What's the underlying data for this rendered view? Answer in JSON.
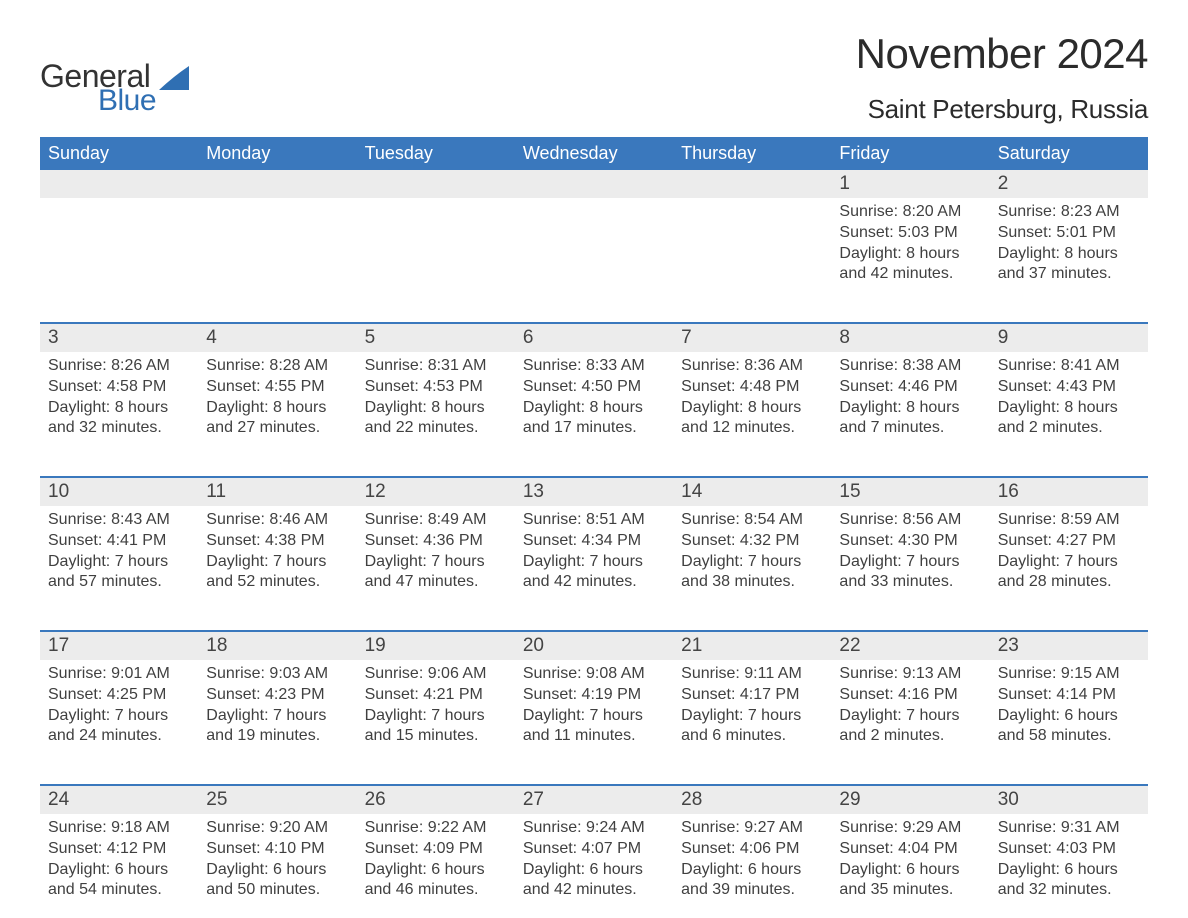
{
  "logo": {
    "general": "General",
    "blue": "Blue",
    "shape_color": "#2f6fb3"
  },
  "title": {
    "month": "November 2024",
    "location": "Saint Petersburg, Russia"
  },
  "colors": {
    "header_bg": "#3a78bd",
    "header_text": "#ffffff",
    "daynum_bg": "#ececec",
    "divider": "#3a78bd",
    "text": "#404040"
  },
  "day_headers": [
    "Sunday",
    "Monday",
    "Tuesday",
    "Wednesday",
    "Thursday",
    "Friday",
    "Saturday"
  ],
  "weeks": [
    {
      "days": [
        {
          "num": "",
          "sunrise": "",
          "sunset": "",
          "daylight1": "",
          "daylight2": ""
        },
        {
          "num": "",
          "sunrise": "",
          "sunset": "",
          "daylight1": "",
          "daylight2": ""
        },
        {
          "num": "",
          "sunrise": "",
          "sunset": "",
          "daylight1": "",
          "daylight2": ""
        },
        {
          "num": "",
          "sunrise": "",
          "sunset": "",
          "daylight1": "",
          "daylight2": ""
        },
        {
          "num": "",
          "sunrise": "",
          "sunset": "",
          "daylight1": "",
          "daylight2": ""
        },
        {
          "num": "1",
          "sunrise": "Sunrise: 8:20 AM",
          "sunset": "Sunset: 5:03 PM",
          "daylight1": "Daylight: 8 hours",
          "daylight2": "and 42 minutes."
        },
        {
          "num": "2",
          "sunrise": "Sunrise: 8:23 AM",
          "sunset": "Sunset: 5:01 PM",
          "daylight1": "Daylight: 8 hours",
          "daylight2": "and 37 minutes."
        }
      ]
    },
    {
      "days": [
        {
          "num": "3",
          "sunrise": "Sunrise: 8:26 AM",
          "sunset": "Sunset: 4:58 PM",
          "daylight1": "Daylight: 8 hours",
          "daylight2": "and 32 minutes."
        },
        {
          "num": "4",
          "sunrise": "Sunrise: 8:28 AM",
          "sunset": "Sunset: 4:55 PM",
          "daylight1": "Daylight: 8 hours",
          "daylight2": "and 27 minutes."
        },
        {
          "num": "5",
          "sunrise": "Sunrise: 8:31 AM",
          "sunset": "Sunset: 4:53 PM",
          "daylight1": "Daylight: 8 hours",
          "daylight2": "and 22 minutes."
        },
        {
          "num": "6",
          "sunrise": "Sunrise: 8:33 AM",
          "sunset": "Sunset: 4:50 PM",
          "daylight1": "Daylight: 8 hours",
          "daylight2": "and 17 minutes."
        },
        {
          "num": "7",
          "sunrise": "Sunrise: 8:36 AM",
          "sunset": "Sunset: 4:48 PM",
          "daylight1": "Daylight: 8 hours",
          "daylight2": "and 12 minutes."
        },
        {
          "num": "8",
          "sunrise": "Sunrise: 8:38 AM",
          "sunset": "Sunset: 4:46 PM",
          "daylight1": "Daylight: 8 hours",
          "daylight2": "and 7 minutes."
        },
        {
          "num": "9",
          "sunrise": "Sunrise: 8:41 AM",
          "sunset": "Sunset: 4:43 PM",
          "daylight1": "Daylight: 8 hours",
          "daylight2": "and 2 minutes."
        }
      ]
    },
    {
      "days": [
        {
          "num": "10",
          "sunrise": "Sunrise: 8:43 AM",
          "sunset": "Sunset: 4:41 PM",
          "daylight1": "Daylight: 7 hours",
          "daylight2": "and 57 minutes."
        },
        {
          "num": "11",
          "sunrise": "Sunrise: 8:46 AM",
          "sunset": "Sunset: 4:38 PM",
          "daylight1": "Daylight: 7 hours",
          "daylight2": "and 52 minutes."
        },
        {
          "num": "12",
          "sunrise": "Sunrise: 8:49 AM",
          "sunset": "Sunset: 4:36 PM",
          "daylight1": "Daylight: 7 hours",
          "daylight2": "and 47 minutes."
        },
        {
          "num": "13",
          "sunrise": "Sunrise: 8:51 AM",
          "sunset": "Sunset: 4:34 PM",
          "daylight1": "Daylight: 7 hours",
          "daylight2": "and 42 minutes."
        },
        {
          "num": "14",
          "sunrise": "Sunrise: 8:54 AM",
          "sunset": "Sunset: 4:32 PM",
          "daylight1": "Daylight: 7 hours",
          "daylight2": "and 38 minutes."
        },
        {
          "num": "15",
          "sunrise": "Sunrise: 8:56 AM",
          "sunset": "Sunset: 4:30 PM",
          "daylight1": "Daylight: 7 hours",
          "daylight2": "and 33 minutes."
        },
        {
          "num": "16",
          "sunrise": "Sunrise: 8:59 AM",
          "sunset": "Sunset: 4:27 PM",
          "daylight1": "Daylight: 7 hours",
          "daylight2": "and 28 minutes."
        }
      ]
    },
    {
      "days": [
        {
          "num": "17",
          "sunrise": "Sunrise: 9:01 AM",
          "sunset": "Sunset: 4:25 PM",
          "daylight1": "Daylight: 7 hours",
          "daylight2": "and 24 minutes."
        },
        {
          "num": "18",
          "sunrise": "Sunrise: 9:03 AM",
          "sunset": "Sunset: 4:23 PM",
          "daylight1": "Daylight: 7 hours",
          "daylight2": "and 19 minutes."
        },
        {
          "num": "19",
          "sunrise": "Sunrise: 9:06 AM",
          "sunset": "Sunset: 4:21 PM",
          "daylight1": "Daylight: 7 hours",
          "daylight2": "and 15 minutes."
        },
        {
          "num": "20",
          "sunrise": "Sunrise: 9:08 AM",
          "sunset": "Sunset: 4:19 PM",
          "daylight1": "Daylight: 7 hours",
          "daylight2": "and 11 minutes."
        },
        {
          "num": "21",
          "sunrise": "Sunrise: 9:11 AM",
          "sunset": "Sunset: 4:17 PM",
          "daylight1": "Daylight: 7 hours",
          "daylight2": "and 6 minutes."
        },
        {
          "num": "22",
          "sunrise": "Sunrise: 9:13 AM",
          "sunset": "Sunset: 4:16 PM",
          "daylight1": "Daylight: 7 hours",
          "daylight2": "and 2 minutes."
        },
        {
          "num": "23",
          "sunrise": "Sunrise: 9:15 AM",
          "sunset": "Sunset: 4:14 PM",
          "daylight1": "Daylight: 6 hours",
          "daylight2": "and 58 minutes."
        }
      ]
    },
    {
      "days": [
        {
          "num": "24",
          "sunrise": "Sunrise: 9:18 AM",
          "sunset": "Sunset: 4:12 PM",
          "daylight1": "Daylight: 6 hours",
          "daylight2": "and 54 minutes."
        },
        {
          "num": "25",
          "sunrise": "Sunrise: 9:20 AM",
          "sunset": "Sunset: 4:10 PM",
          "daylight1": "Daylight: 6 hours",
          "daylight2": "and 50 minutes."
        },
        {
          "num": "26",
          "sunrise": "Sunrise: 9:22 AM",
          "sunset": "Sunset: 4:09 PM",
          "daylight1": "Daylight: 6 hours",
          "daylight2": "and 46 minutes."
        },
        {
          "num": "27",
          "sunrise": "Sunrise: 9:24 AM",
          "sunset": "Sunset: 4:07 PM",
          "daylight1": "Daylight: 6 hours",
          "daylight2": "and 42 minutes."
        },
        {
          "num": "28",
          "sunrise": "Sunrise: 9:27 AM",
          "sunset": "Sunset: 4:06 PM",
          "daylight1": "Daylight: 6 hours",
          "daylight2": "and 39 minutes."
        },
        {
          "num": "29",
          "sunrise": "Sunrise: 9:29 AM",
          "sunset": "Sunset: 4:04 PM",
          "daylight1": "Daylight: 6 hours",
          "daylight2": "and 35 minutes."
        },
        {
          "num": "30",
          "sunrise": "Sunrise: 9:31 AM",
          "sunset": "Sunset: 4:03 PM",
          "daylight1": "Daylight: 6 hours",
          "daylight2": "and 32 minutes."
        }
      ]
    }
  ]
}
